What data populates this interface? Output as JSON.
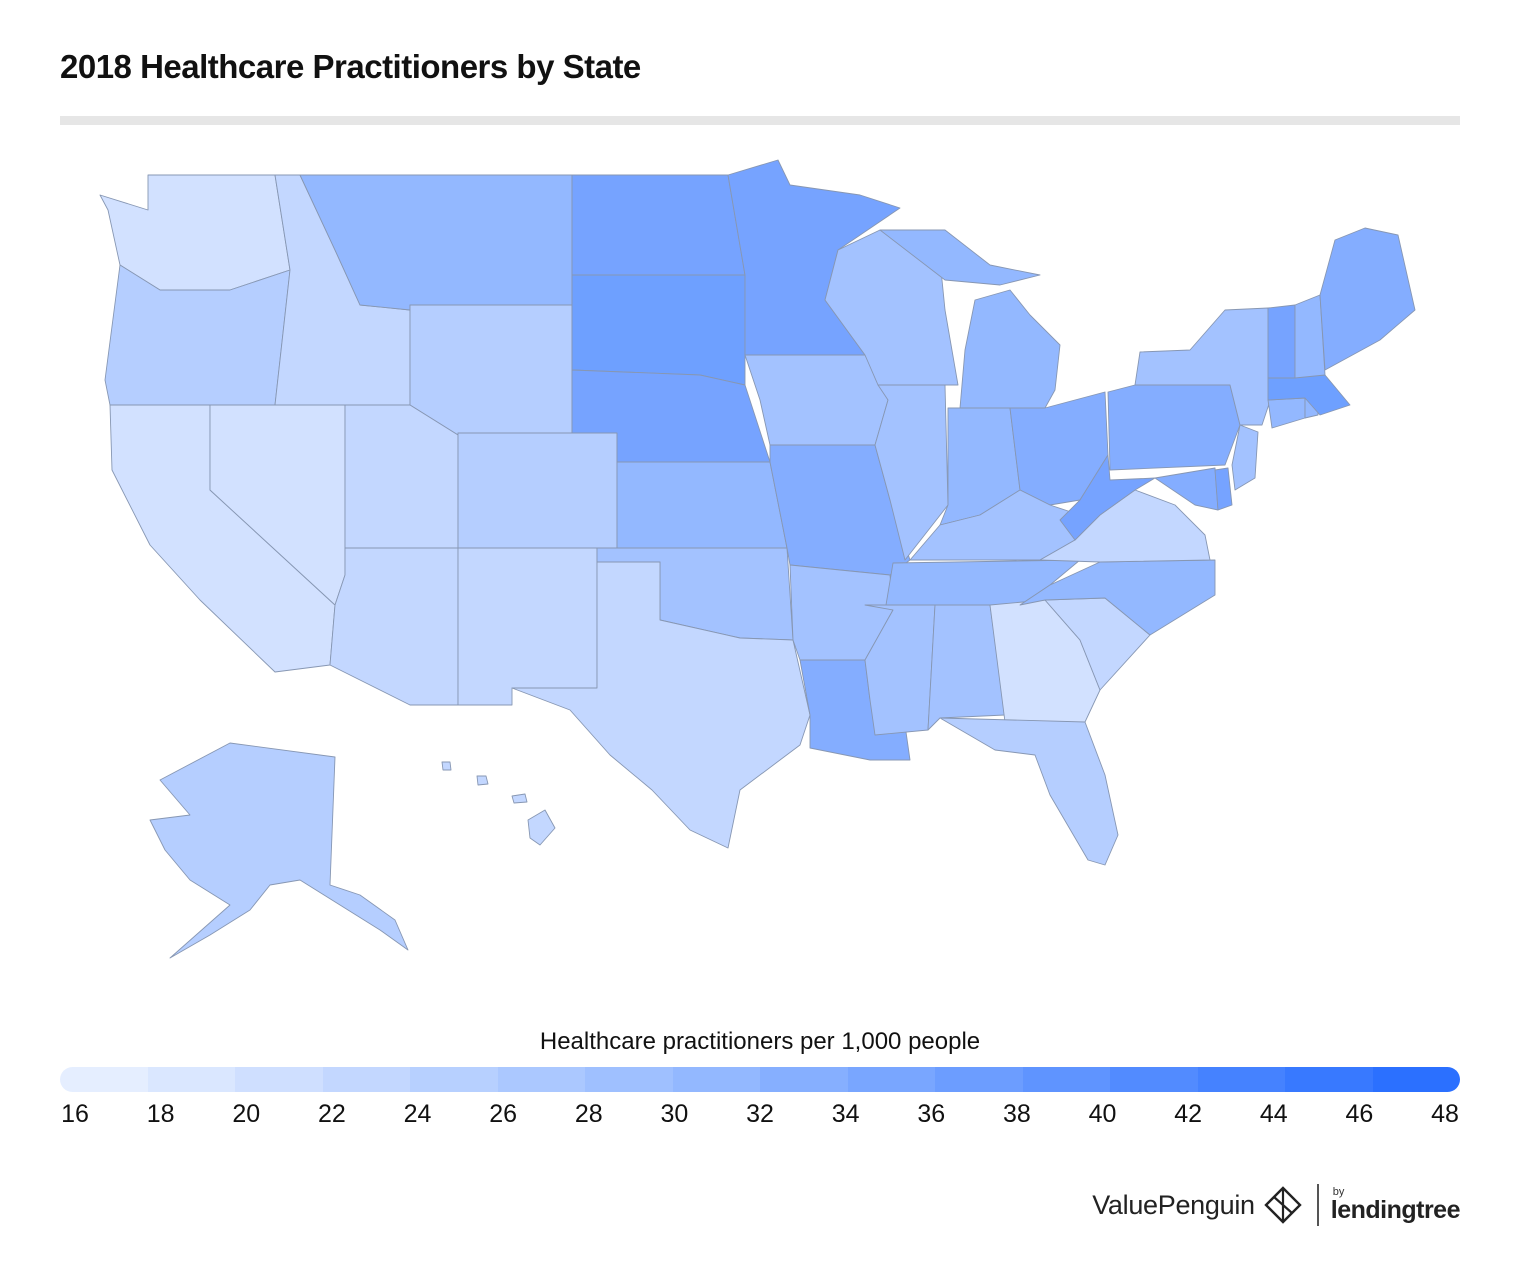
{
  "title": "2018 Healthcare Practitioners by State",
  "map": {
    "subject": "Healthcare practitioners per 1,000 people, by U.S. state",
    "colors": {
      "very_light": "#d2e1ff",
      "light": "#c3d7ff",
      "light_mid": "#b5ceff",
      "mid": "#a3c2ff",
      "mid_dark": "#93b8ff",
      "dark": "#84adff",
      "darker": "#76a3ff",
      "darkest": "#6ea0ff"
    }
  },
  "legend": {
    "title": "Healthcare practitioners per 1,000 people",
    "ticks": [
      "16",
      "18",
      "20",
      "22",
      "24",
      "26",
      "28",
      "30",
      "32",
      "34",
      "36",
      "38",
      "40",
      "42",
      "44",
      "46",
      "48"
    ],
    "colors": [
      "#e5eeff",
      "#dae7ff",
      "#cfdfff",
      "#c3d7ff",
      "#b7d0ff",
      "#abc8ff",
      "#9fc0ff",
      "#93b8ff",
      "#86afff",
      "#79a6ff",
      "#6c9dff",
      "#5f94ff",
      "#528bff",
      "#4582ff",
      "#3879ff",
      "#2b70ff"
    ]
  },
  "branding": {
    "valuepenguin": "ValuePenguin",
    "by": "by",
    "lendingtree": "lendingtree"
  }
}
